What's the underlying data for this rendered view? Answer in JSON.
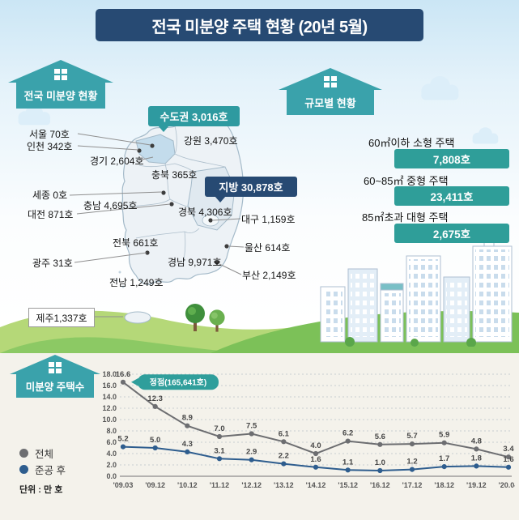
{
  "header": {
    "title": "전국 미분양 주택 현황 (20년 5월)"
  },
  "map_section": {
    "label": "전국 미분양 현황",
    "capital_badge": "수도권 3,016호",
    "provincial_badge": "지방 30,878호",
    "regions": [
      "서울 70호",
      "인천 342호",
      "경기 2,604호",
      "강원 3,470호",
      "충북 365호",
      "세종 0호",
      "충남 4,695호",
      "대전 871호",
      "경북 4,306호",
      "대구 1,159호",
      "전북 661호",
      "울산 614호",
      "광주 31호",
      "경남 9,971호",
      "부산 2,149호",
      "전남 1,249호",
      "제주1,337호"
    ]
  },
  "scale_section": {
    "label": "규모별 현황",
    "items": [
      {
        "label": "60㎡이하 소형 주택",
        "value": "7,808호"
      },
      {
        "label": "60~85㎡ 중형 주택",
        "value": "23,411호"
      },
      {
        "label": "85㎡초과 대형 주택",
        "value": "2,675호"
      }
    ]
  },
  "chart_section": {
    "label": "미분양 주택수"
  },
  "chart_data": {
    "type": "line",
    "x": [
      "'09.03",
      "'09.12",
      "'10.12",
      "'11.12",
      "'12.12",
      "'13.12",
      "'14.12",
      "'15.12",
      "'16.12",
      "'17.12",
      "'18.12",
      "'19.12",
      "'20.04"
    ],
    "series": [
      {
        "name": "전체",
        "color": "#6d6e71",
        "values": [
          16.6,
          12.3,
          8.9,
          7.0,
          7.5,
          6.1,
          4.0,
          6.2,
          5.6,
          5.7,
          5.9,
          4.8,
          3.4
        ]
      },
      {
        "name": "준공 후",
        "color": "#2e5d8e",
        "values": [
          5.2,
          5.0,
          4.3,
          3.1,
          2.9,
          2.2,
          1.6,
          1.1,
          1.0,
          1.2,
          1.7,
          1.8,
          1.6
        ]
      }
    ],
    "ylim": [
      0,
      18
    ],
    "ytick_step": 2,
    "unit": "단위 : 만 호",
    "annotation": "정점(165,641호)",
    "legend_position": "left",
    "grid": "horizontal-dotted"
  },
  "colors": {
    "navy": "#274a73",
    "teal": "#2f9e9b",
    "sky": "#cbe6f5",
    "grass": "#7cc158"
  }
}
